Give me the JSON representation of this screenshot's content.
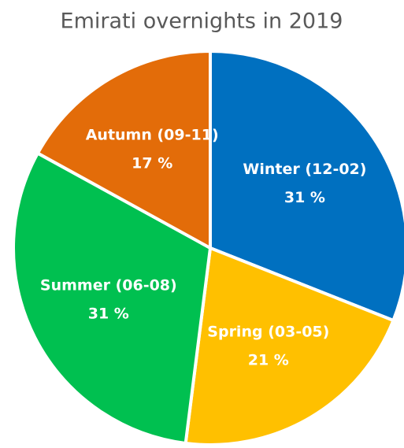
{
  "chart_data": {
    "type": "pie",
    "title": "Emirati overnights in 2019",
    "categories": [
      "Winter (12-02)",
      "Spring (03-05)",
      "Summer (06-08)",
      "Autumn (09-11)"
    ],
    "values": [
      31,
      21,
      31,
      17
    ],
    "value_labels": [
      "31 %",
      "21 %",
      "31 %",
      "17 %"
    ],
    "colors": [
      "#0070C0",
      "#FFC000",
      "#00C050",
      "#E36C09"
    ]
  }
}
